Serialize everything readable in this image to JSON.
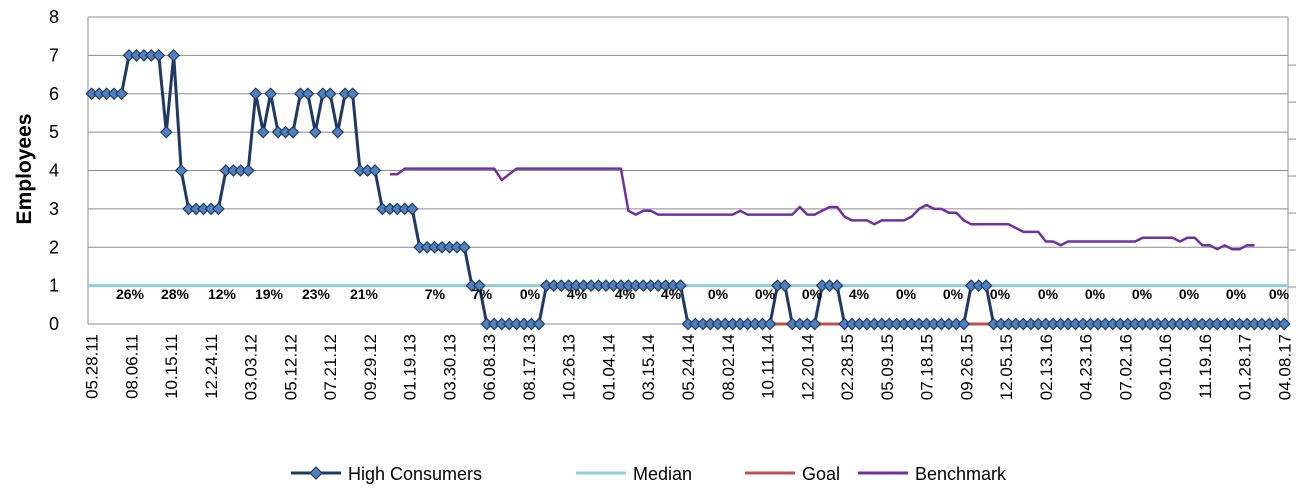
{
  "chart_data": {
    "type": "line",
    "title": "",
    "xlabel": "",
    "ylabel": "Employees",
    "ylim": [
      0,
      8
    ],
    "yticks": [
      0,
      1,
      2,
      3,
      4,
      5,
      6,
      7,
      8
    ],
    "grid": true,
    "legend_position": "bottom",
    "x_tick_labels": [
      "05.28.11",
      "08.06.11",
      "10.15.11",
      "12.24.11",
      "03.03.12",
      "05.12.12",
      "07.21.12",
      "09.29.12",
      "01.19.13",
      "03.30.13",
      "06.08.13",
      "08.17.13",
      "10.26.13",
      "01.04.14",
      "03.15.14",
      "05.24.14",
      "08.02.14",
      "10.11.14",
      "12.20.14",
      "02.28.15",
      "05.09.15",
      "07.18.15",
      "09.26.15",
      "12.05.15",
      "02.13.16",
      "04.23.16",
      "07.02.16",
      "09.10.16",
      "11.19.16",
      "01.28.17",
      "04.08.17"
    ],
    "period_labels": [
      "26%",
      "28%",
      "12%",
      "19%",
      "23%",
      "21%",
      "7%",
      "7%",
      "0%",
      "4%",
      "4%",
      "4%",
      "0%",
      "0%",
      "0%",
      "4%",
      "0%",
      "0%",
      "0%",
      "0%",
      "0%",
      "0%",
      "0%",
      "0%",
      "0%"
    ],
    "series": [
      {
        "name": "High Consumers",
        "color": "#1f3864",
        "marker": "diamond",
        "values": [
          6,
          6,
          6,
          6,
          6,
          7,
          7,
          7,
          7,
          7,
          5,
          7,
          4,
          3,
          3,
          3,
          3,
          3,
          4,
          4,
          4,
          4,
          6,
          5,
          6,
          5,
          5,
          5,
          6,
          6,
          5,
          6,
          6,
          5,
          6,
          6,
          4,
          4,
          4,
          3,
          3,
          3,
          3,
          3,
          2,
          2,
          2,
          2,
          2,
          2,
          2,
          1,
          1,
          0,
          0,
          0,
          0,
          0,
          0,
          0,
          0,
          1,
          1,
          1,
          1,
          1,
          1,
          1,
          1,
          1,
          1,
          1,
          1,
          1,
          1,
          1,
          1,
          1,
          1,
          1,
          0,
          0,
          0,
          0,
          0,
          0,
          0,
          0,
          0,
          0,
          0,
          0,
          1,
          1,
          0,
          0,
          0,
          0,
          1,
          1,
          1,
          0,
          0,
          0,
          0,
          0,
          0,
          0,
          0,
          0,
          0,
          0,
          0,
          0,
          0,
          0,
          0,
          0,
          1,
          1,
          1,
          0,
          0,
          0,
          0,
          0,
          0,
          0,
          0,
          0,
          0,
          0,
          0,
          0,
          0,
          0,
          0,
          0,
          0,
          0,
          0,
          0,
          0,
          0,
          0,
          0,
          0,
          0,
          0,
          0,
          0,
          0,
          0,
          0,
          0,
          0,
          0,
          0,
          0,
          0,
          0
        ]
      },
      {
        "name": "Median",
        "color": "#92cddc",
        "start_index": 0,
        "values": [
          1,
          1
        ]
      },
      {
        "name": "Goal",
        "color": "#c0504d",
        "start_index": 80,
        "values": [
          0,
          0
        ]
      },
      {
        "name": "Benchmark",
        "color": "#7030a0",
        "start_index": 40,
        "values": [
          3.9,
          3.9,
          4.05,
          4.05,
          4.05,
          4.05,
          4.05,
          4.05,
          4.05,
          4.05,
          4.05,
          4.05,
          4.05,
          4.05,
          4.05,
          3.75,
          3.9,
          4.05,
          4.05,
          4.05,
          4.05,
          4.05,
          4.05,
          4.05,
          4.05,
          4.05,
          4.05,
          4.05,
          4.05,
          4.05,
          4.05,
          4.05,
          2.95,
          2.85,
          2.95,
          2.95,
          2.85,
          2.85,
          2.85,
          2.85,
          2.85,
          2.85,
          2.85,
          2.85,
          2.85,
          2.85,
          2.85,
          2.95,
          2.85,
          2.85,
          2.85,
          2.85,
          2.85,
          2.85,
          2.85,
          3.05,
          2.85,
          2.85,
          2.95,
          3.05,
          3.05,
          2.8,
          2.7,
          2.7,
          2.7,
          2.6,
          2.7,
          2.7,
          2.7,
          2.7,
          2.8,
          3.0,
          3.1,
          3.0,
          3.0,
          2.9,
          2.9,
          2.7,
          2.6,
          2.6,
          2.6,
          2.6,
          2.6,
          2.6,
          2.5,
          2.4,
          2.4,
          2.4,
          2.15,
          2.15,
          2.05,
          2.15,
          2.15,
          2.15,
          2.15,
          2.15,
          2.15,
          2.15,
          2.15,
          2.15,
          2.15,
          2.25,
          2.25,
          2.25,
          2.25,
          2.25,
          2.15,
          2.25,
          2.25,
          2.05,
          2.05,
          1.95,
          2.05,
          1.95,
          1.95,
          2.05,
          2.05
        ]
      }
    ]
  }
}
